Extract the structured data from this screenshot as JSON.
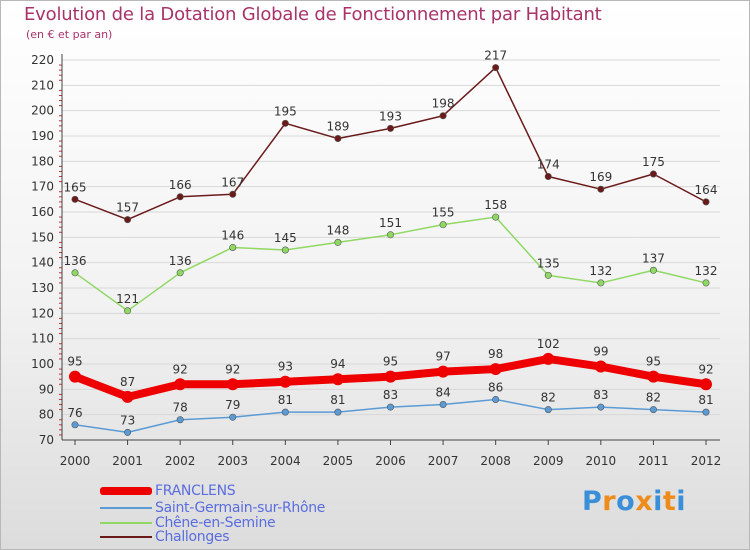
{
  "title": "Evolution de la Dotation Globale de Fonctionnement par Habitant",
  "subtitle": "(en € et par an)",
  "colors": {
    "title": "#a8336b",
    "axis": "#444444",
    "grid": "#d8d8d8",
    "label": "#333333",
    "tick_red": "#d03030",
    "legend_text": "#5a6de0"
  },
  "chart_data": {
    "type": "line",
    "title": "Evolution de la Dotation Globale de Fonctionnement par Habitant",
    "subtitle": "(en € et par an)",
    "xlabel": "",
    "ylabel": "",
    "x": [
      "2000",
      "2001",
      "2002",
      "2003",
      "2004",
      "2005",
      "2006",
      "2007",
      "2008",
      "2009",
      "2010",
      "2011",
      "2012"
    ],
    "ylim": [
      70,
      220
    ],
    "yticks": [
      70,
      80,
      90,
      100,
      110,
      120,
      130,
      140,
      150,
      160,
      170,
      180,
      190,
      200,
      210,
      220
    ],
    "grid": true,
    "legend_position": "bottom-left",
    "series": [
      {
        "name": "Challonges",
        "color": "#6b1a1a",
        "values": [
          165,
          157,
          166,
          167,
          195,
          189,
          193,
          198,
          217,
          174,
          169,
          175,
          164
        ]
      },
      {
        "name": "Chêne-en-Semine",
        "color": "#8fd862",
        "values": [
          136,
          121,
          136,
          146,
          145,
          148,
          151,
          155,
          158,
          135,
          132,
          137,
          132
        ]
      },
      {
        "name": "Saint-Germain-sur-Rhône",
        "color": "#5b9bd5",
        "values": [
          76,
          73,
          78,
          79,
          81,
          81,
          83,
          84,
          86,
          82,
          83,
          82,
          81
        ]
      },
      {
        "name": "FRANCLENS",
        "color": "#ee0000",
        "values": [
          95,
          87,
          92,
          92,
          93,
          94,
          95,
          97,
          98,
          102,
          99,
          95,
          92
        ]
      }
    ],
    "legend_order": [
      "FRANCLENS",
      "Saint-Germain-sur-Rhône",
      "Chêne-en-Semine",
      "Challonges"
    ]
  },
  "logo": {
    "text": "Proxiti",
    "letter_colors": [
      "#3a8fd8",
      "#ee8b1a",
      "#3a8fd8",
      "#ee8b1a",
      "#3a8fd8",
      "#ee8b1a",
      "#3a8fd8"
    ]
  }
}
